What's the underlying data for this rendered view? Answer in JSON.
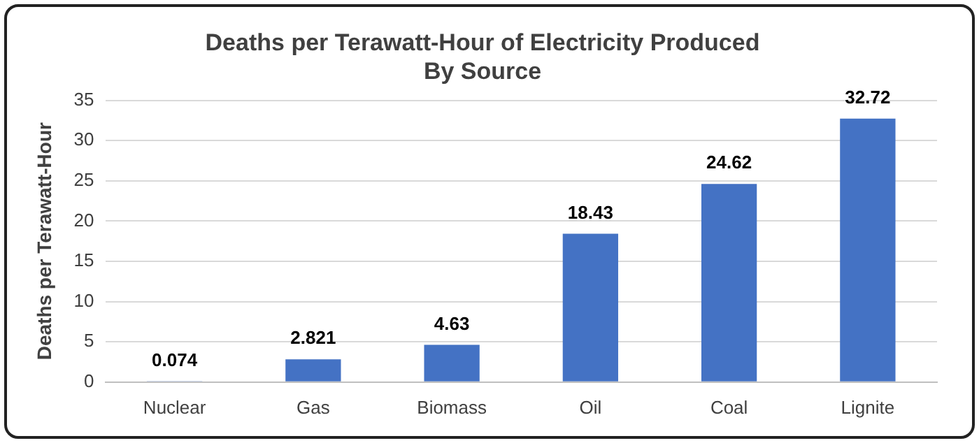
{
  "chart_data": {
    "type": "bar",
    "title": "Deaths per Terawatt-Hour of Electricity Produced\nBy Source",
    "ylabel": "Deaths per Terawatt-Hour",
    "categories": [
      "Nuclear",
      "Gas",
      "Biomass",
      "Oil",
      "Coal",
      "Lignite"
    ],
    "values": [
      0.074,
      2.821,
      4.63,
      18.43,
      24.62,
      32.72
    ],
    "color": "#4472c4",
    "ylim": [
      0,
      35
    ],
    "yticks": [
      0,
      5,
      10,
      15,
      20,
      25,
      30,
      35
    ],
    "grid": "y",
    "legend": false,
    "data_labels": true
  }
}
